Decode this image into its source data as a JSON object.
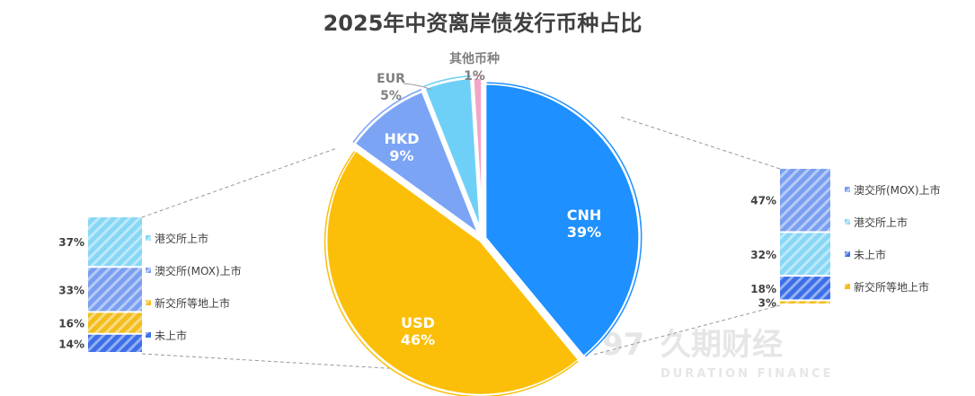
{
  "chart_data": {
    "type": "pie",
    "title": "2025年中资离岸债发行币种占比",
    "slices": [
      {
        "label": "CNH",
        "value": 39,
        "color": "#1e90ff",
        "pct": "39%"
      },
      {
        "label": "USD",
        "value": 46,
        "color": "#fbbf0a",
        "pct": "46%"
      },
      {
        "label": "HKD",
        "value": 9,
        "color": "#7ba4f5",
        "pct": "9%"
      },
      {
        "label": "EUR",
        "value": 5,
        "color": "#6fd0f7",
        "pct": "5%"
      },
      {
        "label": "其他币种",
        "value": 1,
        "color": "#f2a6c6",
        "pct": "1%"
      }
    ],
    "breakdowns": [
      {
        "parent": "USD",
        "side": "left",
        "segments": [
          {
            "label": "港交所上市",
            "value": 37,
            "pct": "37%",
            "color": "#87d7f5"
          },
          {
            "label": "澳交所(MOX)上市",
            "value": 33,
            "pct": "33%",
            "color": "#7a9ef0"
          },
          {
            "label": "新交所等地上市",
            "value": 16,
            "pct": "16%",
            "color": "#f2bd1d"
          },
          {
            "label": "未上市",
            "value": 14,
            "pct": "14%",
            "color": "#3d6fe8"
          }
        ]
      },
      {
        "parent": "CNH",
        "side": "right",
        "segments": [
          {
            "label": "澳交所(MOX)上市",
            "value": 47,
            "pct": "47%",
            "color": "#7a9ef0"
          },
          {
            "label": "港交所上市",
            "value": 32,
            "pct": "32%",
            "color": "#87d7f5"
          },
          {
            "label": "未上市",
            "value": 18,
            "pct": "18%",
            "color": "#3d6fe8"
          },
          {
            "label": "新交所等地上市",
            "value": 3,
            "pct": "3%",
            "color": "#f2bd1d"
          }
        ]
      }
    ]
  },
  "watermark": {
    "cn": "久期财经",
    "en": "DURATION FINANCE"
  }
}
